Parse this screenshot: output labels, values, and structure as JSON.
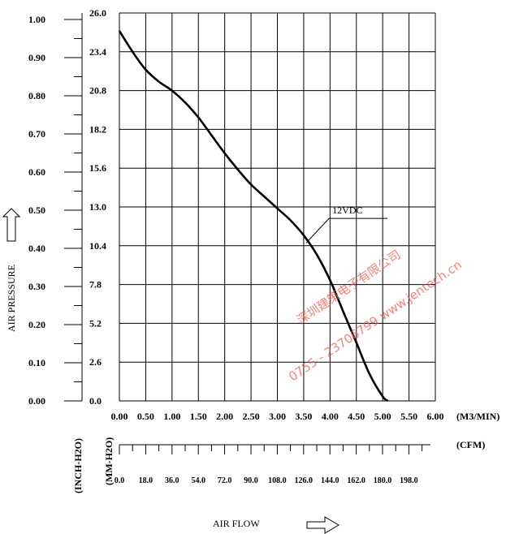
{
  "chart_data": {
    "type": "line",
    "series": [
      {
        "name": "12VDC",
        "x": [
          0.0,
          0.25,
          0.5,
          0.75,
          1.0,
          1.25,
          1.5,
          1.75,
          2.0,
          2.25,
          2.5,
          2.75,
          3.0,
          3.25,
          3.5,
          3.75,
          4.0,
          4.25,
          4.5,
          4.75,
          5.0,
          5.1
        ],
        "y": [
          24.8,
          23.4,
          22.2,
          21.4,
          20.8,
          20.0,
          19.0,
          17.8,
          16.6,
          15.5,
          14.5,
          13.7,
          12.9,
          12.1,
          11.1,
          9.8,
          8.1,
          6.0,
          3.9,
          1.8,
          0.3,
          0.0
        ]
      }
    ],
    "x_axis": {
      "unit_label": "(M3/MIN)",
      "range": [
        0,
        6
      ],
      "ticks": [
        "0.00",
        "0.50",
        "1.00",
        "1.50",
        "2.00",
        "2.50",
        "3.00",
        "3.50",
        "4.00",
        "4.50",
        "5.00",
        "5.50",
        "6.00"
      ]
    },
    "cfm_axis": {
      "unit_label": "(CFM)",
      "ticks": [
        "0.0",
        "18.0",
        "36.0",
        "54.0",
        "72.0",
        "90.0",
        "108.0",
        "126.0",
        "144.0",
        "162.0",
        "180.0",
        "198.0"
      ]
    },
    "y_axis_mm": {
      "unit_label": "(MM-H2O)",
      "range": [
        0,
        26
      ],
      "ticks": [
        "0.0",
        "2.6",
        "5.2",
        "7.8",
        "10.4",
        "13.0",
        "15.6",
        "18.2",
        "20.8",
        "23.4",
        "26.0"
      ]
    },
    "y_axis_inch": {
      "unit_label": "(INCH-H2O)",
      "ticks": [
        "0.00",
        "0.10",
        "0.20",
        "0.30",
        "0.40",
        "0.50",
        "0.60",
        "0.70",
        "0.80",
        "0.90",
        "1.00"
      ]
    },
    "ylabel": "AIR PRESSURE",
    "xlabel": "AIR FLOW",
    "grid": true,
    "curve_label": "12VDC"
  },
  "watermark": {
    "line1": "深圳建策电子有限公司",
    "line2": "0755 - 23706799 www.jentech.cn",
    "color": "#f05a50"
  },
  "icons": {
    "pressure_arrow": "up-arrow-outline-icon",
    "airflow_arrow": "right-arrow-outline-icon"
  }
}
